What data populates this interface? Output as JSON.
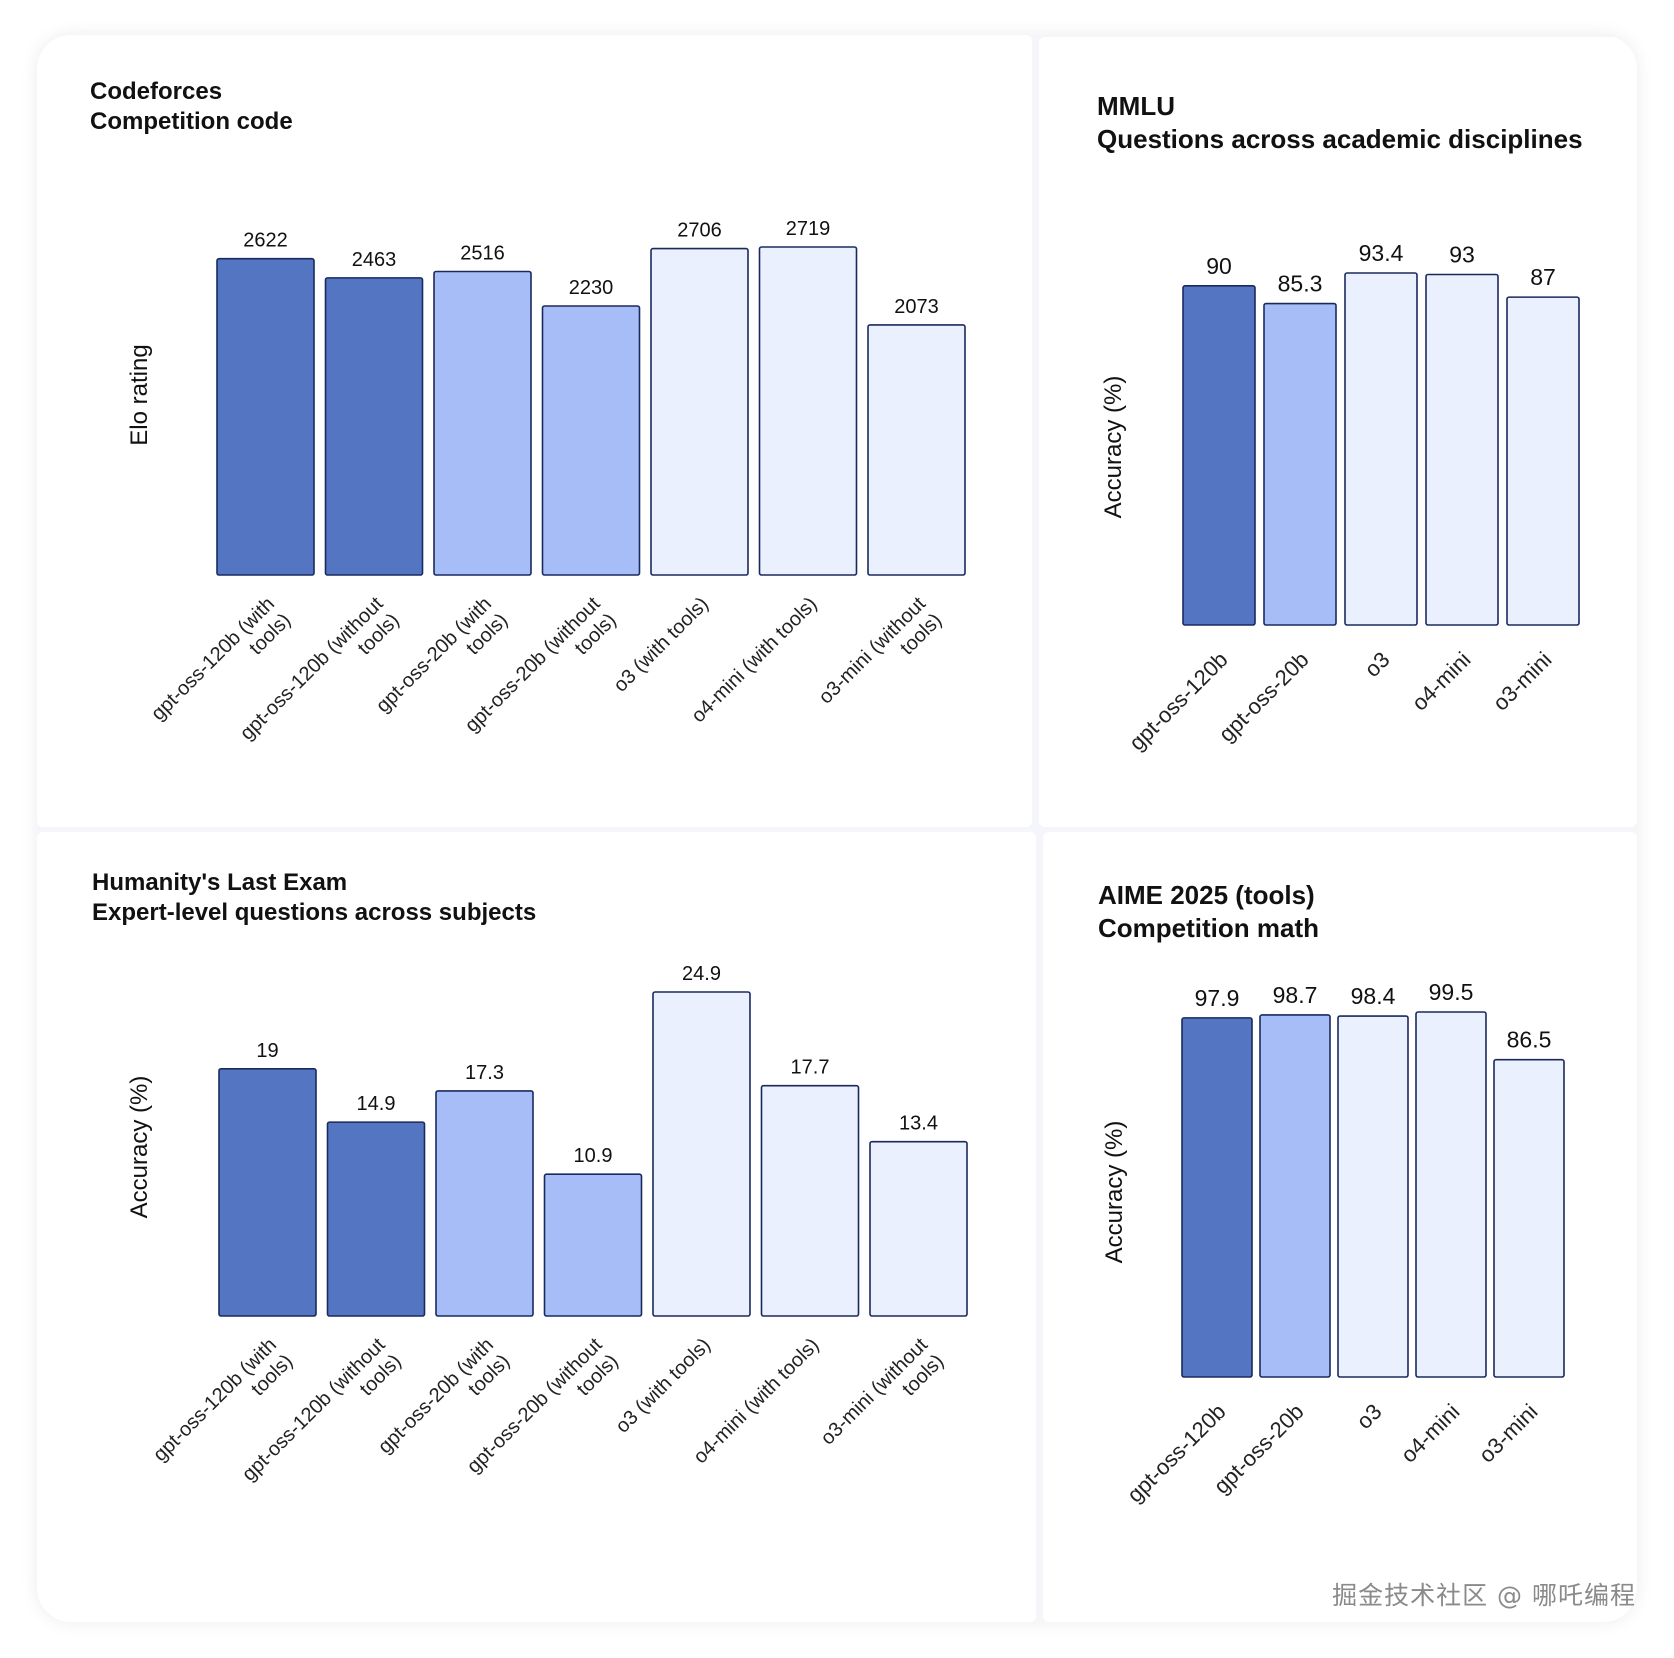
{
  "colors": {
    "dark": "#5475c2",
    "medium": "#a6bdf7",
    "light": "#eaf0fd",
    "outline": "#1a2a5e"
  },
  "watermark": "掘金技术社区 @ 哪吒编程",
  "chart_data": [
    {
      "type": "bar",
      "title": "Codeforces",
      "subtitle": "Competition code",
      "ylabel": "Elo rating",
      "categories": [
        "gpt-oss-120b (with tools)",
        "gpt-oss-120b (without tools)",
        "gpt-oss-20b (with tools)",
        "gpt-oss-20b (without tools)",
        "o3 (with tools)",
        "o4-mini (with tools)",
        "o3-mini (without tools)"
      ],
      "values": [
        2622,
        2463,
        2516,
        2230,
        2706,
        2719,
        2073
      ],
      "value_labels": [
        "2622",
        "2463",
        "2516",
        "2230",
        "2706",
        "2719",
        "2073"
      ],
      "shades": [
        "dark",
        "dark",
        "medium",
        "medium",
        "light",
        "light",
        "light"
      ],
      "ylim": [
        0,
        2719
      ],
      "grid": false
    },
    {
      "type": "bar",
      "title": "MMLU",
      "subtitle": "Questions across academic disciplines",
      "ylabel": "Accuracy (%)",
      "categories": [
        "gpt-oss-120b",
        "gpt-oss-20b",
        "o3",
        "o4-mini",
        "o3-mini"
      ],
      "values": [
        90,
        85.3,
        93.4,
        93,
        87
      ],
      "value_labels": [
        "90",
        "85.3",
        "93.4",
        "93",
        "87"
      ],
      "shades": [
        "dark",
        "medium",
        "light",
        "light",
        "light"
      ],
      "ylim": [
        0,
        93.4
      ],
      "grid": false
    },
    {
      "type": "bar",
      "title": "Humanity's Last Exam",
      "subtitle": "Expert-level questions across subjects",
      "ylabel": "Accuracy (%)",
      "categories": [
        "gpt-oss-120b (with tools)",
        "gpt-oss-120b (without tools)",
        "gpt-oss-20b (with tools)",
        "gpt-oss-20b (without tools)",
        "o3 (with tools)",
        "o4-mini (with tools)",
        "o3-mini (without tools)"
      ],
      "values": [
        19,
        14.9,
        17.3,
        10.9,
        24.9,
        17.7,
        13.4
      ],
      "value_labels": [
        "19",
        "14.9",
        "17.3",
        "10.9",
        "24.9",
        "17.7",
        "13.4"
      ],
      "shades": [
        "dark",
        "dark",
        "medium",
        "medium",
        "light",
        "light",
        "light"
      ],
      "ylim": [
        0,
        24.9
      ],
      "grid": false
    },
    {
      "type": "bar",
      "title": "AIME 2025 (tools)",
      "subtitle": "Competition math",
      "ylabel": "Accuracy (%)",
      "categories": [
        "gpt-oss-120b",
        "gpt-oss-20b",
        "o3",
        "o4-mini",
        "o3-mini"
      ],
      "values": [
        97.9,
        98.7,
        98.4,
        99.5,
        86.5
      ],
      "value_labels": [
        "97.9",
        "98.7",
        "98.4",
        "99.5",
        "86.5"
      ],
      "shades": [
        "dark",
        "medium",
        "light",
        "light",
        "light"
      ],
      "ylim": [
        0,
        99.5
      ],
      "grid": false
    }
  ]
}
